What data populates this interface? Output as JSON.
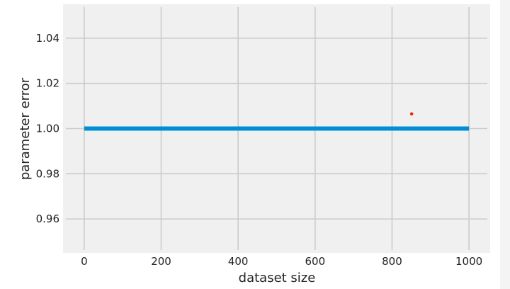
{
  "chart_data": {
    "type": "line",
    "title": "",
    "xlabel": "dataset size",
    "ylabel": "parameter error",
    "xlim": [
      -55,
      1055
    ],
    "ylim": [
      0.945,
      1.055
    ],
    "x_ticks": [
      0,
      200,
      400,
      600,
      800,
      1000
    ],
    "y_ticks": [
      0.96,
      0.98,
      1.0,
      1.02,
      1.04
    ],
    "x_tick_labels": [
      "0",
      "200",
      "400",
      "600",
      "800",
      "1000"
    ],
    "y_tick_labels": [
      "0.96",
      "0.98",
      "1.00",
      "1.02",
      "1.04"
    ],
    "grid": true,
    "series": [
      {
        "type": "line",
        "color": "#008fd5",
        "x": [
          0,
          1000
        ],
        "y": [
          1.0,
          1.0
        ]
      },
      {
        "type": "scatter",
        "color": "#e5280f",
        "x": [
          851
        ],
        "y": [
          1.0065
        ]
      }
    ],
    "colors": {
      "plot_background": "#f0f0f0",
      "grid": "#cbcbcb"
    }
  }
}
